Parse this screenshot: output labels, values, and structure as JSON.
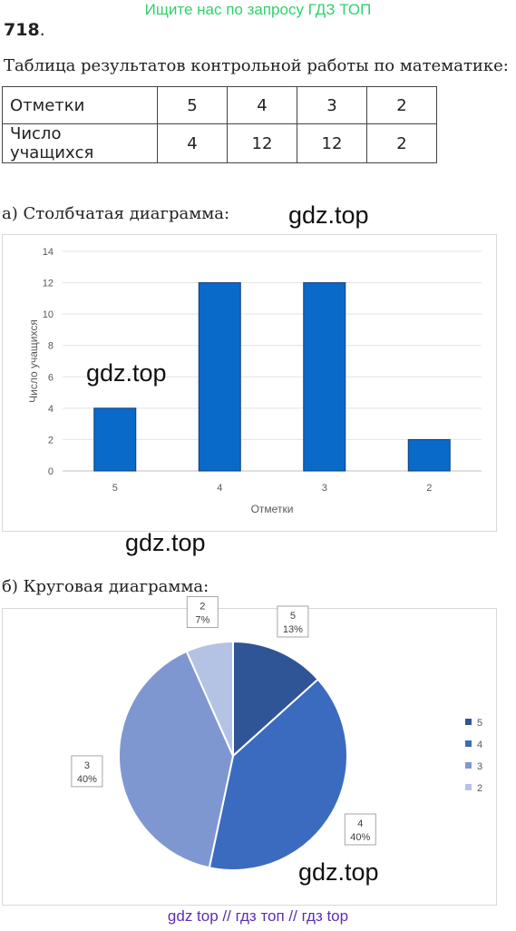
{
  "banner": "Ищите нас по запросу ГДЗ ТОП",
  "problem": {
    "number": "718",
    "dot": "."
  },
  "intro": "Таблица результатов контрольной работы по математике:",
  "table": {
    "row1": [
      "Отметки",
      "5",
      "4",
      "3",
      "2"
    ],
    "row2": [
      "Число учащихся",
      "4",
      "12",
      "12",
      "2"
    ]
  },
  "part_a": "а) Столбчатая диаграмма:",
  "part_b": "б) Круговая диаграмма:",
  "watermarks": [
    "gdz.top",
    "gdz.top",
    "gdz.top",
    "gdz.top"
  ],
  "footer": "gdz top  //  гдз топ  //  гдз top",
  "chart_data": [
    {
      "type": "bar",
      "categories": [
        "5",
        "4",
        "3",
        "2"
      ],
      "values": [
        4,
        12,
        12,
        2
      ],
      "xlabel": "Отметки",
      "ylabel": "Число учащихся",
      "ylim": [
        0,
        14
      ],
      "yticks": [
        "0",
        "2",
        "4",
        "6",
        "8",
        "10",
        "12",
        "14"
      ],
      "grid": true,
      "color": "#0a6ac9"
    },
    {
      "type": "pie",
      "categories": [
        "5",
        "4",
        "3",
        "2"
      ],
      "values": [
        2,
        6,
        6,
        1
      ],
      "labels": [
        {
          "name": "5",
          "pct": "13%"
        },
        {
          "name": "4",
          "pct": "40%"
        },
        {
          "name": "3",
          "pct": "40%"
        },
        {
          "name": "2",
          "pct": "7%"
        }
      ],
      "colors": [
        "#2f5597",
        "#3b6bbf",
        "#7f97d1",
        "#b4c2e3"
      ],
      "legend": "right"
    }
  ]
}
